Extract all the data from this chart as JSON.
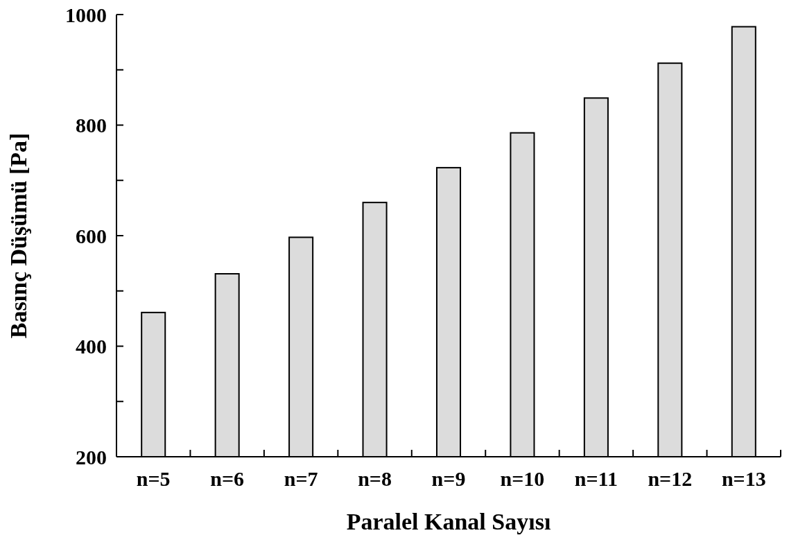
{
  "chart_data": {
    "type": "bar",
    "xlabel": "Paralel Kanal Sayısı",
    "ylabel": "Basınç Düşümü [Pa]",
    "categories": [
      "n=5",
      "n=6",
      "n=7",
      "n=8",
      "n=9",
      "n=10",
      "n=11",
      "n=12",
      "n=13"
    ],
    "values": [
      461,
      531,
      597,
      660,
      723,
      786,
      849,
      912,
      978
    ],
    "color": "#dcdcdc",
    "ylim": [
      200,
      1000
    ],
    "yticks": [
      200,
      {
        "value": 300,
        "label": null
      },
      400,
      {
        "value": 500,
        "label": null
      },
      600,
      {
        "value": 700,
        "label": null
      },
      800,
      {
        "value": 900,
        "label": null
      },
      1000
    ],
    "grid": false
  }
}
